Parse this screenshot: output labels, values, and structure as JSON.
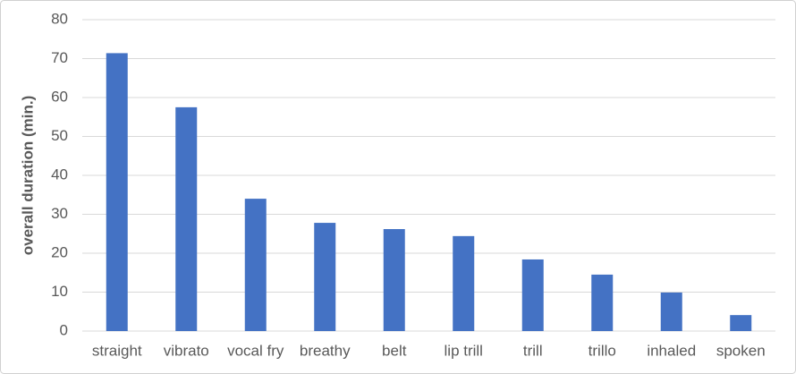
{
  "chart_data": {
    "type": "bar",
    "y_label": "overall duration (min.)",
    "categories": [
      "straight",
      "vibrato",
      "vocal fry",
      "breathy",
      "belt",
      "lip trill",
      "trill",
      "trillo",
      "inhaled",
      "spoken"
    ],
    "values": [
      71.4,
      57.5,
      34.0,
      27.8,
      26.2,
      24.4,
      18.4,
      14.5,
      9.9,
      4.1
    ],
    "color": "#4472c4",
    "ylim": [
      0,
      80
    ],
    "yticks": [
      0,
      10,
      20,
      30,
      40,
      50,
      60,
      70,
      80
    ],
    "grid": true
  }
}
